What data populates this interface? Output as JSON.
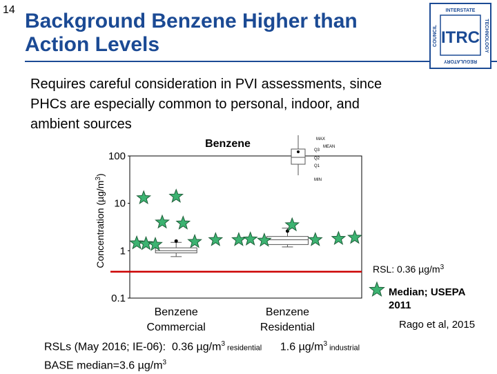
{
  "slide": {
    "number": "14",
    "title_line1": "Background Benzene Higher than",
    "title_line2": "Action Levels",
    "body_line1": "Requires careful consideration in PVI assessments, since",
    "body_line2": "PHCs are especially common to personal, indoor, and",
    "body_line3": "ambient sources"
  },
  "logo": {
    "center_text": "ITRC",
    "left_text": "COUNCIL",
    "top_text": "INTERSTATE",
    "right_text": "TECHNOLOGY",
    "bottom_text": "REGULATORY"
  },
  "chart_data": {
    "type": "scatter",
    "title": "Benzene",
    "ylabel": "Concentration (µg/m",
    "ylabel_sup": "3",
    "ylabel_close": ")",
    "y_scale": "log",
    "ylim": [
      0.1,
      100
    ],
    "y_ticks": [
      "100",
      "10",
      "1",
      "0.1"
    ],
    "categories": [
      "Benzene Commercial",
      "Benzene Residential"
    ],
    "category_line1": [
      "Benzene",
      "Benzene"
    ],
    "category_line2": [
      "Commercial",
      "Residential"
    ],
    "rsl_line": {
      "value": 0.36,
      "label": "RSL: 0.36 µg/m",
      "label_sup": "3",
      "color": "#cc0000"
    },
    "star_legend": "Median; USEPA 2011",
    "star_legend_line1": "Median; USEPA",
    "star_legend_line2": "2011",
    "star_color": "#3cb371",
    "source": "Rago et al, 2015",
    "series": [
      {
        "name": "Median; USEPA 2011",
        "points": [
          {
            "x": 0.03,
            "y": 1.45
          },
          {
            "x": 0.07,
            "y": 1.4
          },
          {
            "x": 0.11,
            "y": 1.35
          },
          {
            "x": 0.06,
            "y": 13
          },
          {
            "x": 0.2,
            "y": 14
          },
          {
            "x": 0.14,
            "y": 4.0
          },
          {
            "x": 0.23,
            "y": 3.8
          },
          {
            "x": 0.28,
            "y": 1.55
          },
          {
            "x": 0.37,
            "y": 1.7
          },
          {
            "x": 0.47,
            "y": 1.7
          },
          {
            "x": 0.52,
            "y": 1.75
          },
          {
            "x": 0.58,
            "y": 1.65
          },
          {
            "x": 0.7,
            "y": 3.5
          },
          {
            "x": 0.8,
            "y": 1.7
          },
          {
            "x": 0.9,
            "y": 1.8
          },
          {
            "x": 0.97,
            "y": 1.9
          }
        ]
      }
    ],
    "boxplots": [
      {
        "name": "Benzene Commercial",
        "min": 0.75,
        "q1": 0.9,
        "median": 1.0,
        "q3": 1.15,
        "max": 1.5,
        "mean": 1.6
      },
      {
        "name": "Benzene Residential",
        "min": 1.2,
        "q1": 1.35,
        "median": 1.7,
        "q3": 2.0,
        "max": 3.0,
        "mean": 2.6
      }
    ],
    "box_legend": {
      "max": "MAX",
      "mean": "MEAN",
      "q3": "Q3",
      "q2": "Q2",
      "q1": "Q1",
      "min": "MIN"
    }
  },
  "footer": {
    "line1_a": "RSLs (May 2016; IE-06):  0.36 µg/m",
    "line1_sup1": "3",
    "line1_small1": " residential",
    "line1_b": "      1.6 µg/m",
    "line1_sup2": "3",
    "line1_small2": " industrial",
    "line2": "BASE median=3.6 µg/m",
    "line2_sup": "3"
  }
}
